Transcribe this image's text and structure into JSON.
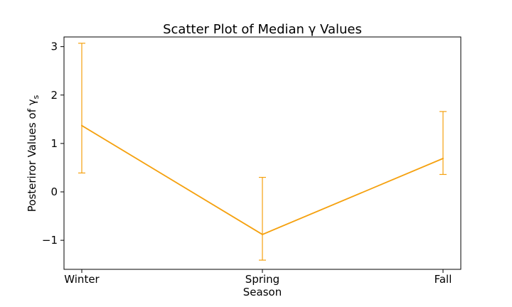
{
  "chart_data": {
    "type": "line",
    "title": "Scatter Plot of Median γ Values",
    "xlabel": "Season",
    "ylabel": "Posteriror Values of γ",
    "ylabel_subscript": "s",
    "categories": [
      "Winter",
      "Spring",
      "Fall"
    ],
    "ylim": [
      -1.6,
      3.2
    ],
    "yticks": [
      -1,
      0,
      1,
      2,
      3
    ],
    "ytick_labels": [
      "−1",
      "0",
      "1",
      "2",
      "3"
    ],
    "grid": false,
    "series": [
      {
        "values": [
          1.37,
          -0.88,
          0.69
        ],
        "error_low": [
          0.39,
          -1.41,
          0.36
        ],
        "error_high": [
          3.07,
          0.3,
          1.66
        ],
        "color": "#f5a10f"
      }
    ]
  }
}
